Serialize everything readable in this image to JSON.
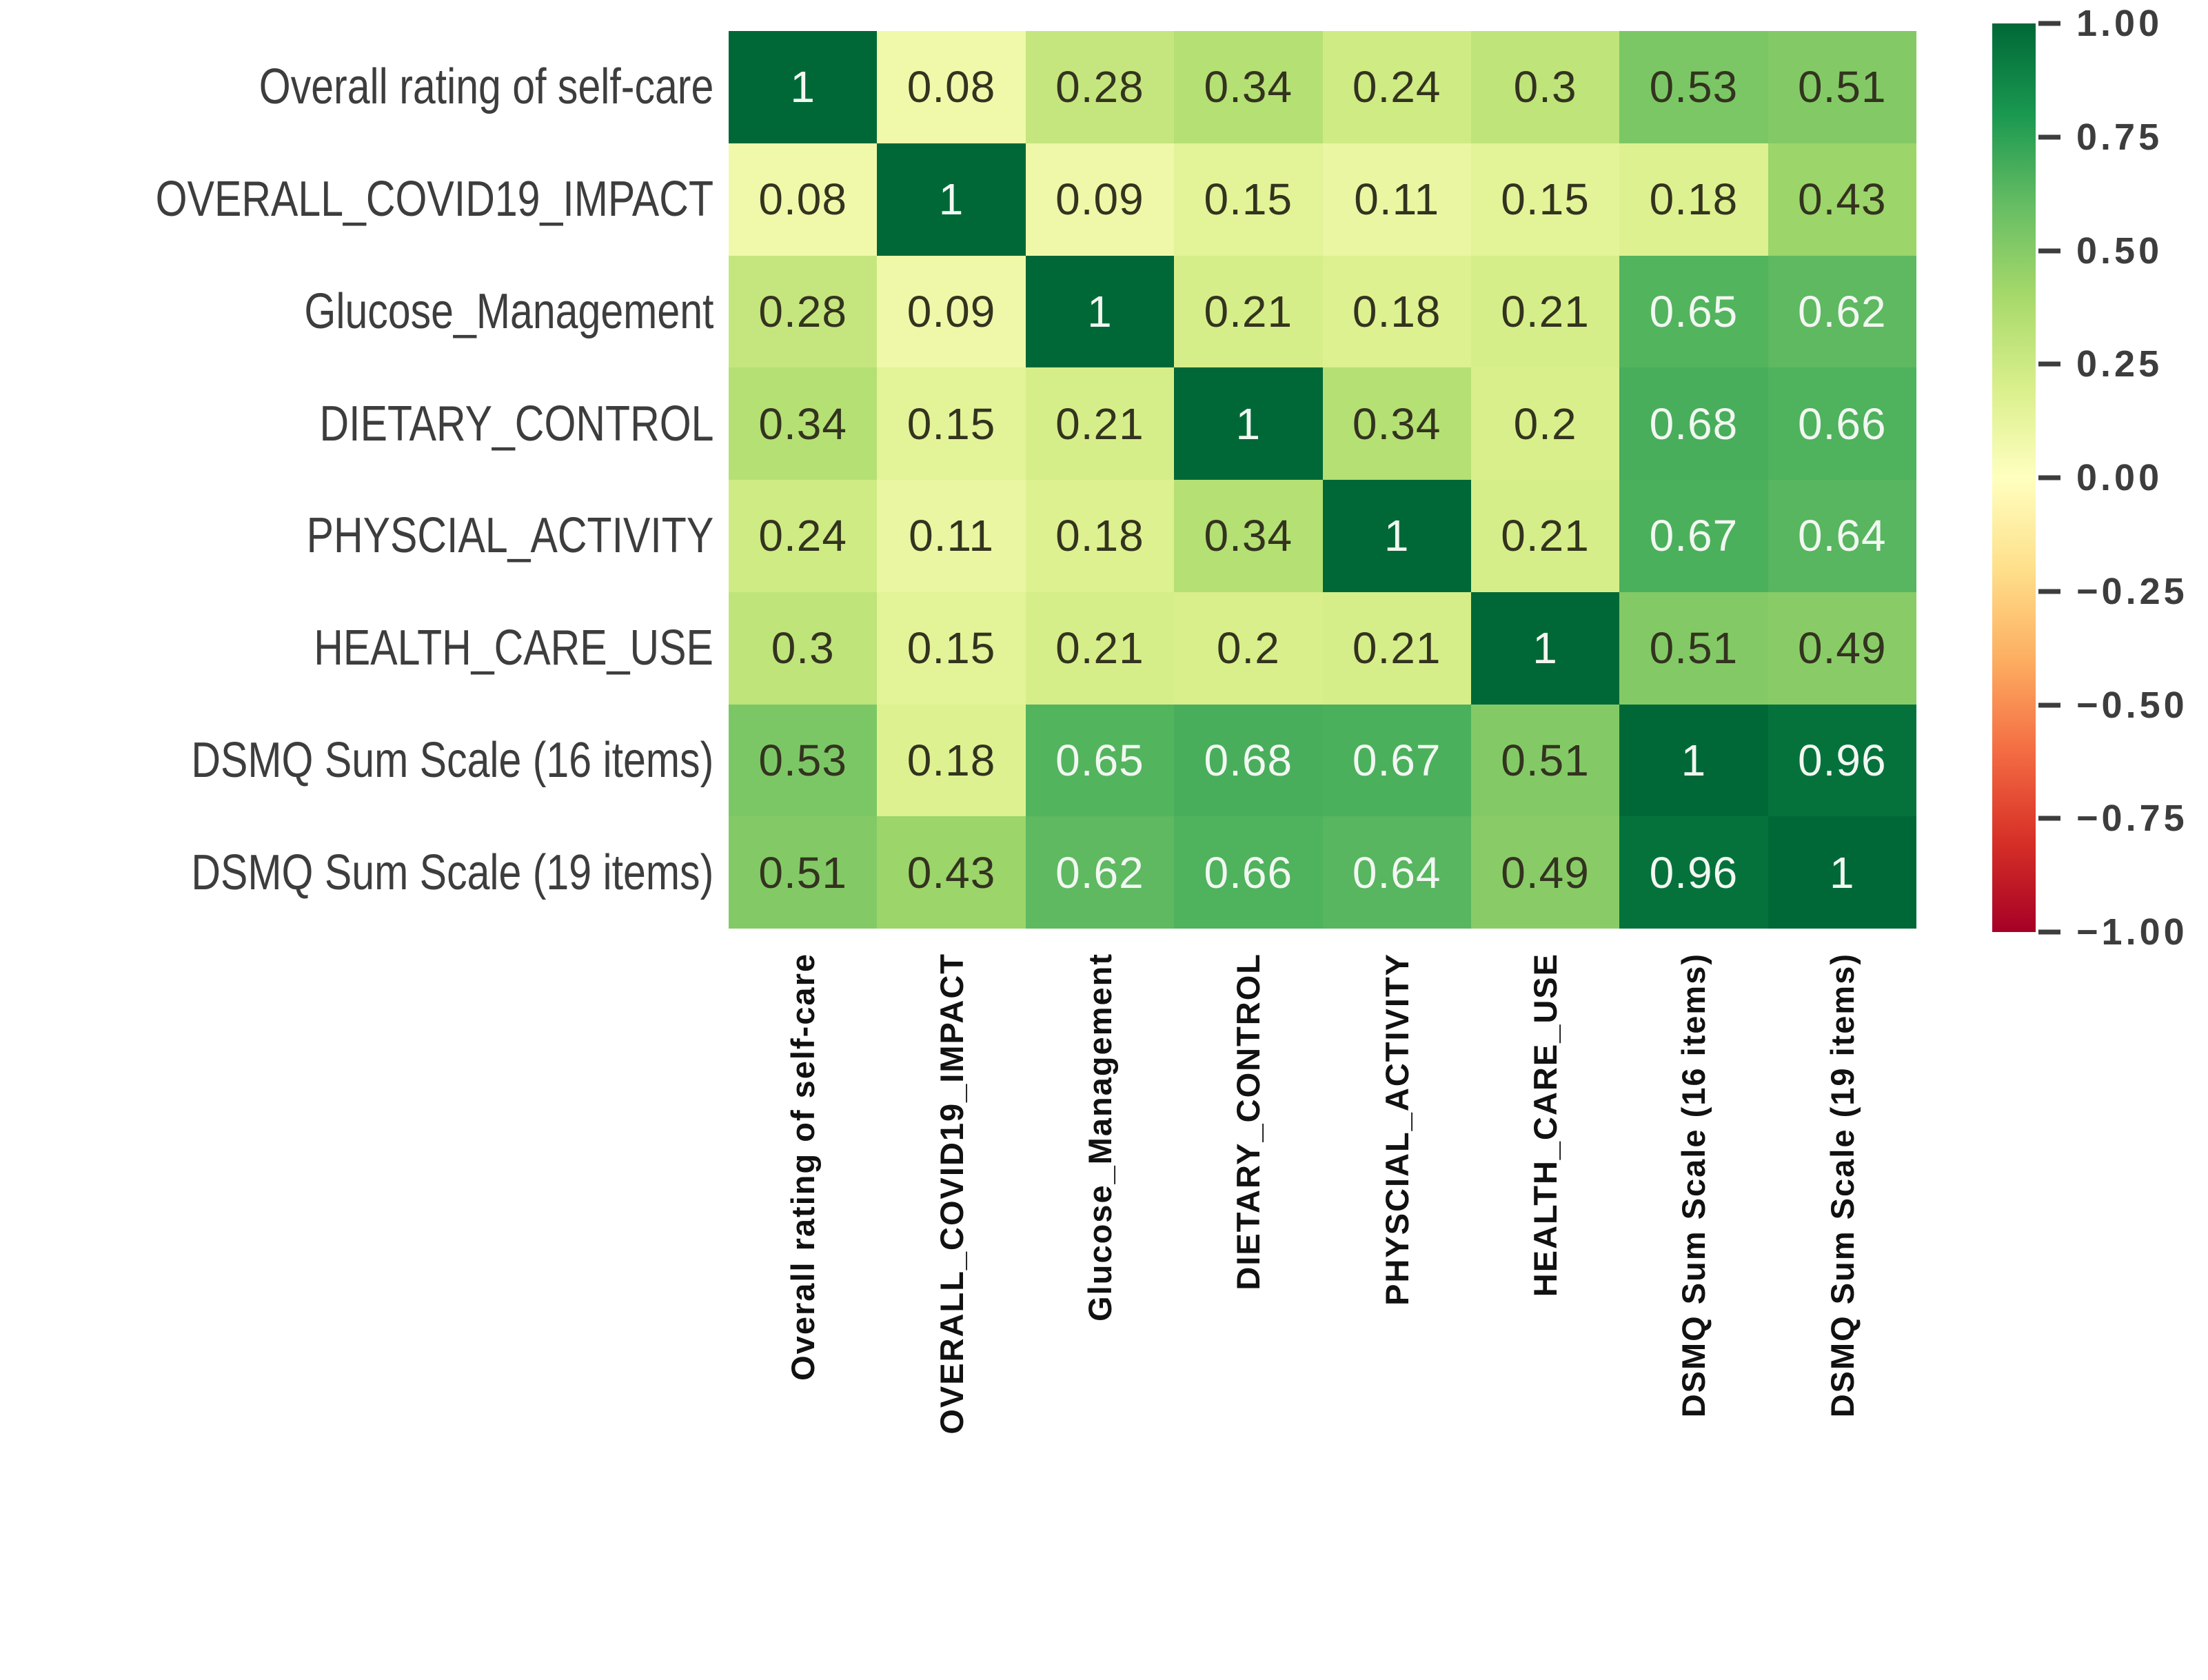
{
  "chart_data": {
    "type": "heatmap",
    "title": "",
    "description": "Correlation matrix heatmap of diabetes self-care scales",
    "categories": [
      "Overall rating of self-care",
      "OVERALL_COVID19_IMPACT",
      "Glucose_Management",
      "DIETARY_CONTROL",
      "PHYSCIAL_ACTIVITY",
      "HEALTH_CARE_USE",
      "DSMQ Sum Scale (16 items)",
      "DSMQ Sum Scale (19 items)"
    ],
    "matrix": [
      [
        1,
        0.08,
        0.28,
        0.34,
        0.24,
        0.3,
        0.53,
        0.51
      ],
      [
        0.08,
        1,
        0.09,
        0.15,
        0.11,
        0.15,
        0.18,
        0.43
      ],
      [
        0.28,
        0.09,
        1,
        0.21,
        0.18,
        0.21,
        0.65,
        0.62
      ],
      [
        0.34,
        0.15,
        0.21,
        1,
        0.34,
        0.2,
        0.68,
        0.66
      ],
      [
        0.24,
        0.11,
        0.18,
        0.34,
        1,
        0.21,
        0.67,
        0.64
      ],
      [
        0.3,
        0.15,
        0.21,
        0.2,
        0.21,
        1,
        0.51,
        0.49
      ],
      [
        0.53,
        0.18,
        0.65,
        0.68,
        0.67,
        0.51,
        1,
        0.96
      ],
      [
        0.51,
        0.43,
        0.62,
        0.66,
        0.64,
        0.49,
        0.96,
        1
      ]
    ],
    "scale": {
      "min": -1,
      "max": 1
    },
    "grid": false,
    "legend_position": "right",
    "colormap_name": "RdYlGn",
    "colormap_stops": [
      {
        "t": 0.0,
        "color": "#a50026"
      },
      {
        "t": 0.1,
        "color": "#d73027"
      },
      {
        "t": 0.2,
        "color": "#f46d43"
      },
      {
        "t": 0.3,
        "color": "#fdae61"
      },
      {
        "t": 0.4,
        "color": "#fee08b"
      },
      {
        "t": 0.5,
        "color": "#ffffbf"
      },
      {
        "t": 0.6,
        "color": "#d9ef8b"
      },
      {
        "t": 0.7,
        "color": "#a6d96a"
      },
      {
        "t": 0.8,
        "color": "#66bd63"
      },
      {
        "t": 0.9,
        "color": "#1a9850"
      },
      {
        "t": 1.0,
        "color": "#006837"
      }
    ],
    "colorbar_ticks": [
      "1.00",
      "0.75",
      "0.50",
      "0.25",
      "0.00",
      "−0.25",
      "−0.50",
      "−0.75",
      "−1.00"
    ],
    "colorbar_tick_values": [
      1,
      0.75,
      0.5,
      0.25,
      0,
      -0.25,
      -0.5,
      -0.75,
      -1
    ],
    "annotation": {
      "light_text": "#f2f7f1",
      "dark_text": "#33331f",
      "white_threshold": 0.6
    },
    "axis_label_color_y": "#3d3d3d",
    "axis_label_color_x": "#111111",
    "background_color": "#ffffff"
  }
}
